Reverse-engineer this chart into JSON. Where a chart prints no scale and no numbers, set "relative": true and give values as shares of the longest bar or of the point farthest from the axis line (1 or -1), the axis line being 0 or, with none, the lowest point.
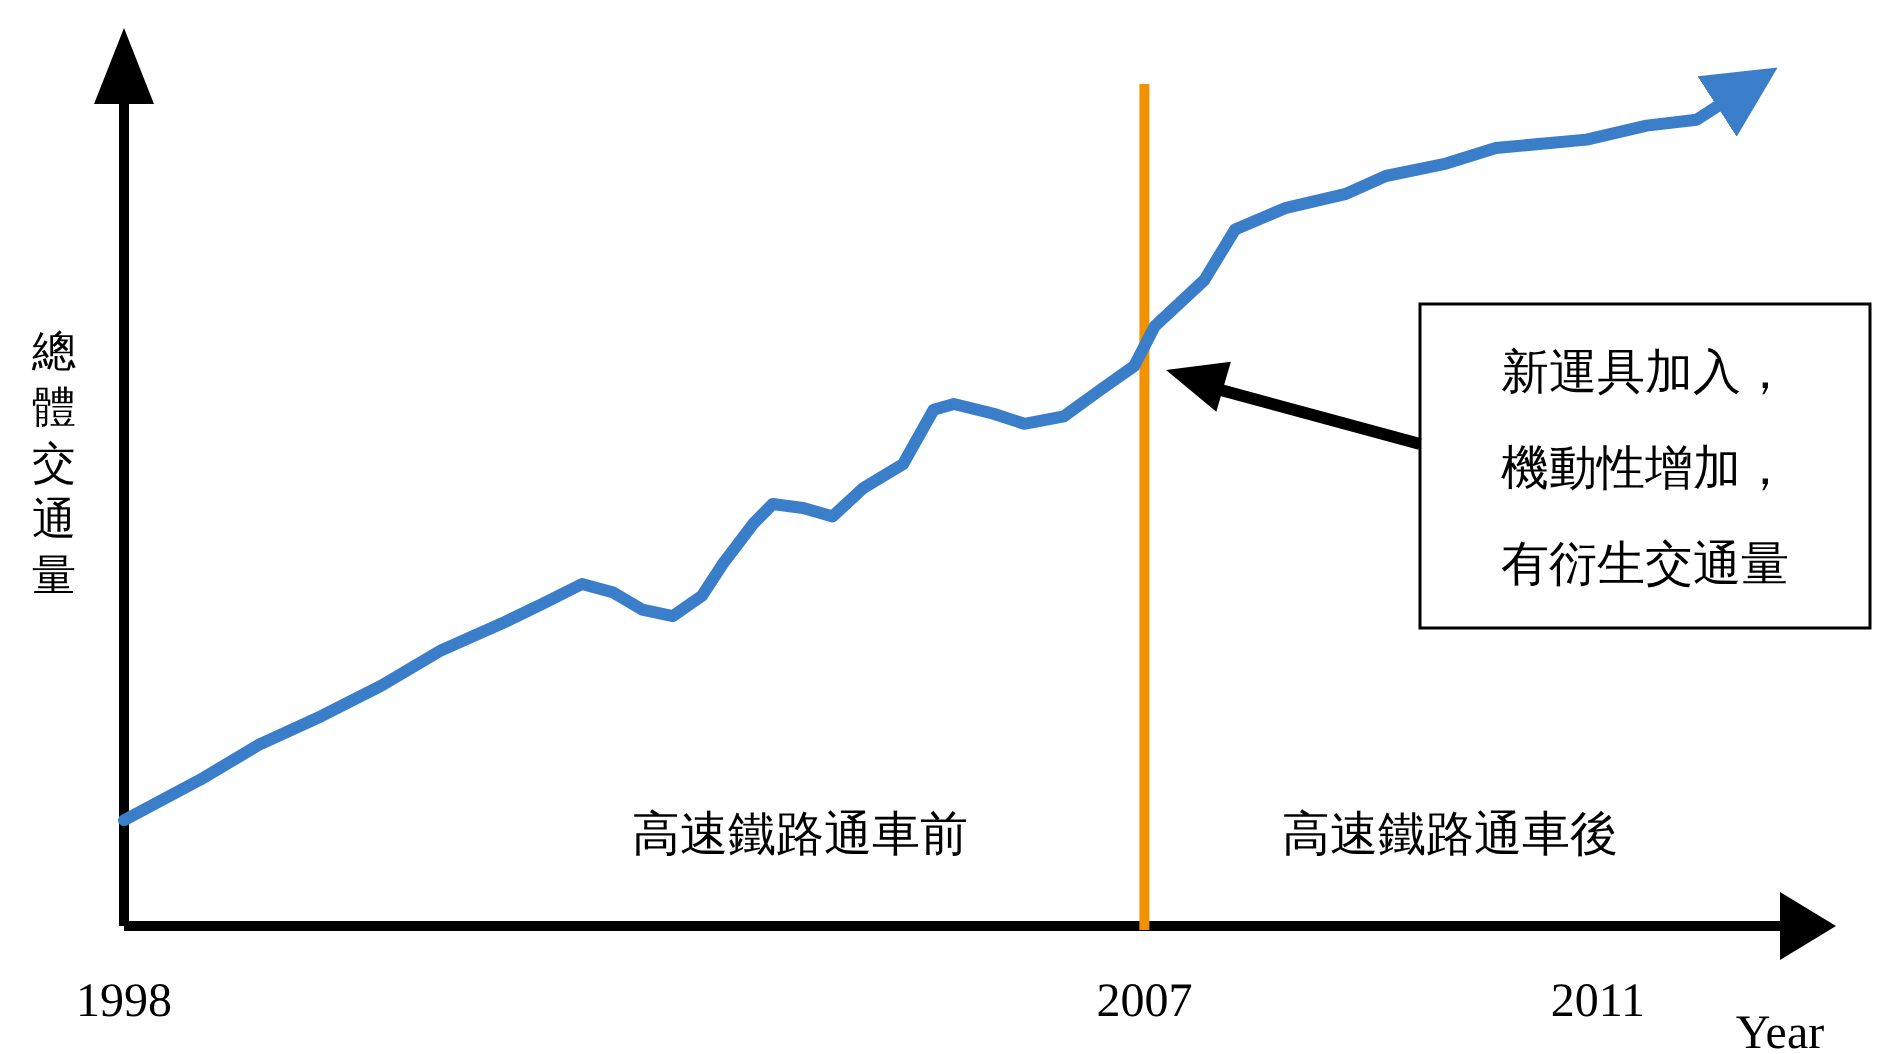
{
  "chart_data": {
    "type": "line",
    "relative": true,
    "xlabel": "Year",
    "ylabel": "總體交通量",
    "x": [
      1998.0,
      1998.67,
      1999.2,
      1999.74,
      2000.27,
      2000.8,
      2001.33,
      2001.69,
      2002.04,
      2002.31,
      2002.57,
      2002.84,
      2003.1,
      2003.28,
      2003.55,
      2003.72,
      2003.99,
      2004.25,
      2004.52,
      2004.87,
      2005.14,
      2005.32,
      2005.67,
      2005.94,
      2006.29,
      2006.61,
      2006.91,
      2007.09,
      2007.53,
      2007.8,
      2008.24,
      2008.77,
      2009.13,
      2009.66,
      2010.1,
      2010.9,
      2011.43,
      2011.87,
      2012.14
    ],
    "series": [
      {
        "color": "#3a7dc9",
        "values": [
          0.128,
          0.177,
          0.22,
          0.254,
          0.291,
          0.334,
          0.366,
          0.39,
          0.414,
          0.404,
          0.383,
          0.375,
          0.4,
          0.438,
          0.487,
          0.511,
          0.506,
          0.496,
          0.53,
          0.559,
          0.625,
          0.632,
          0.62,
          0.608,
          0.617,
          0.649,
          0.678,
          0.726,
          0.782,
          0.843,
          0.869,
          0.886,
          0.908,
          0.923,
          0.942,
          0.952,
          0.969,
          0.976,
          1
        ]
      }
    ],
    "xlim": [
      1998,
      2013.1
    ],
    "xticks": [
      1998,
      2007,
      2011
    ],
    "ref_lines": [
      {
        "axis": "x",
        "value": 2007,
        "color": "#f39200"
      }
    ],
    "annotations": [
      "高速鐵路通車前",
      "高速鐵路通車後",
      "新運具加入，機動性增加，有衍生交通量"
    ]
  }
}
